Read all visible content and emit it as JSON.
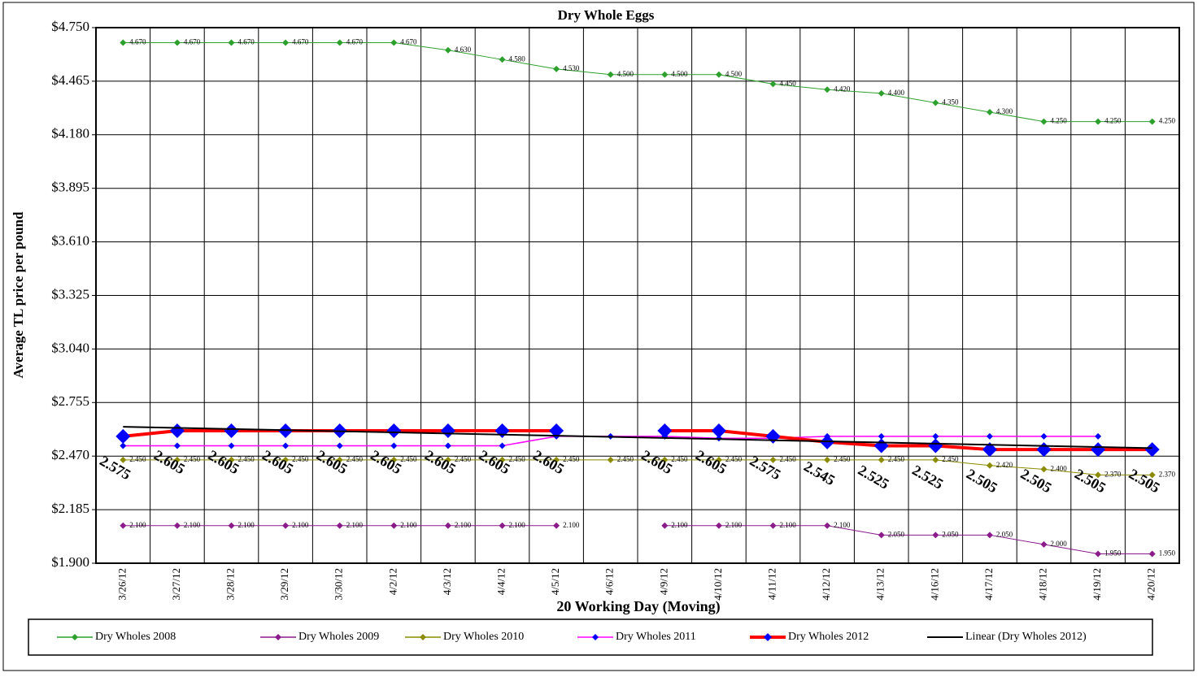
{
  "chart_data": {
    "type": "line",
    "title": "Dry Whole Eggs",
    "x_label": "20 Working Day (Moving)",
    "y_label": "Average TL price per pound",
    "categories": [
      "3/26/12",
      "3/27/12",
      "3/28/12",
      "3/29/12",
      "3/30/12",
      "4/2/12",
      "4/3/12",
      "4/4/12",
      "4/5/12",
      "4/6/12",
      "4/9/12",
      "4/10/12",
      "4/11/12",
      "4/12/12",
      "4/13/12",
      "4/16/12",
      "4/17/12",
      "4/18/12",
      "4/19/12",
      "4/20/12"
    ],
    "ylim": [
      1.9,
      4.75
    ],
    "yticks": [
      {
        "value": 1.9,
        "label": "$1.900"
      },
      {
        "value": 2.185,
        "label": "$2.185"
      },
      {
        "value": 2.47,
        "label": "$2.470"
      },
      {
        "value": 2.755,
        "label": "$2.755"
      },
      {
        "value": 3.04,
        "label": "$3.040"
      },
      {
        "value": 3.325,
        "label": "$3.325"
      },
      {
        "value": 3.61,
        "label": "$3.610"
      },
      {
        "value": 3.895,
        "label": "$3.895"
      },
      {
        "value": 4.18,
        "label": "$4.180"
      },
      {
        "value": 4.465,
        "label": "$4.465"
      },
      {
        "value": 4.75,
        "label": "$4.750"
      }
    ],
    "grid": true,
    "series": [
      {
        "name": "Dry Wholes 2008",
        "color": "#2ca02c",
        "marker_color": "#2ca02c",
        "line_width": 1,
        "marker_size": 4,
        "values": [
          4.67,
          4.67,
          4.67,
          4.67,
          4.67,
          4.67,
          4.63,
          4.58,
          4.53,
          4.5,
          4.5,
          4.5,
          4.45,
          4.42,
          4.4,
          4.35,
          4.3,
          4.25,
          4.25,
          4.25
        ],
        "value_labels": [
          "4.670",
          "4.670",
          "4.670",
          "4.670",
          "4.670",
          "4.670",
          "4.630",
          "4.580",
          "4.530",
          "4.500",
          "4.500",
          "4.500",
          "4.450",
          "4.420",
          "4.400",
          "4.350",
          "4.300",
          "4.250",
          "4.250",
          "4.250"
        ]
      },
      {
        "name": "Dry Wholes 2009",
        "color": "#8b1a8b",
        "marker_color": "#8b1a8b",
        "line_width": 1,
        "marker_size": 4,
        "values": [
          2.1,
          2.1,
          2.1,
          2.1,
          2.1,
          2.1,
          2.1,
          2.1,
          2.1,
          null,
          2.1,
          2.1,
          2.1,
          2.1,
          2.05,
          2.05,
          2.05,
          2.0,
          1.95,
          1.95
        ],
        "value_labels": [
          "2.100",
          "2.100",
          "2.100",
          "2.100",
          "2.100",
          "2.100",
          "2.100",
          "2.100",
          "2.100",
          null,
          "2.100",
          "2.100",
          "2.100",
          "2.100",
          "2.050",
          "2.050",
          "2.050",
          "2.000",
          "1.950",
          "1.950"
        ]
      },
      {
        "name": "Dry Wholes 2010",
        "color": "#8b8b00",
        "marker_color": "#8b8b00",
        "line_width": 1,
        "marker_size": 4,
        "values": [
          2.45,
          2.45,
          2.45,
          2.45,
          2.45,
          2.45,
          2.45,
          2.45,
          2.45,
          2.45,
          2.45,
          2.45,
          2.45,
          2.45,
          2.45,
          2.45,
          2.42,
          2.4,
          2.37,
          2.37
        ],
        "value_labels": [
          "2.450",
          "2.450",
          "2.450",
          "2.450",
          "2.450",
          "2.450",
          "2.450",
          "2.450",
          "2.450",
          "2.450",
          "2.450",
          "2.450",
          "2.450",
          "2.450",
          "2.450",
          "2.450",
          "2.420",
          "2.400",
          "2.370",
          "2.370"
        ]
      },
      {
        "name": "Dry Wholes 2011",
        "color": "#ff00ff",
        "marker_color": "#0000ff",
        "line_width": 1.5,
        "marker_size": 4,
        "values": [
          2.525,
          2.525,
          2.525,
          2.525,
          2.525,
          2.525,
          2.525,
          2.525,
          2.575,
          2.575,
          2.575,
          2.565,
          2.565,
          2.575,
          2.575,
          2.575,
          2.575,
          2.575,
          2.575,
          null
        ]
      },
      {
        "name": "Dry Wholes 2012",
        "color": "#ff0000",
        "marker_color": "#0000ff",
        "line_width": 4,
        "marker_size": 9,
        "big_labels": true,
        "values": [
          2.575,
          2.605,
          2.605,
          2.605,
          2.605,
          2.605,
          2.605,
          2.605,
          2.605,
          null,
          2.605,
          2.605,
          2.575,
          2.545,
          2.525,
          2.525,
          2.505,
          2.505,
          2.505,
          2.505
        ]
      }
    ],
    "trend": {
      "name": "Linear (Dry Wholes 2012)",
      "color": "#000000",
      "type": "linear",
      "series": 4
    }
  }
}
